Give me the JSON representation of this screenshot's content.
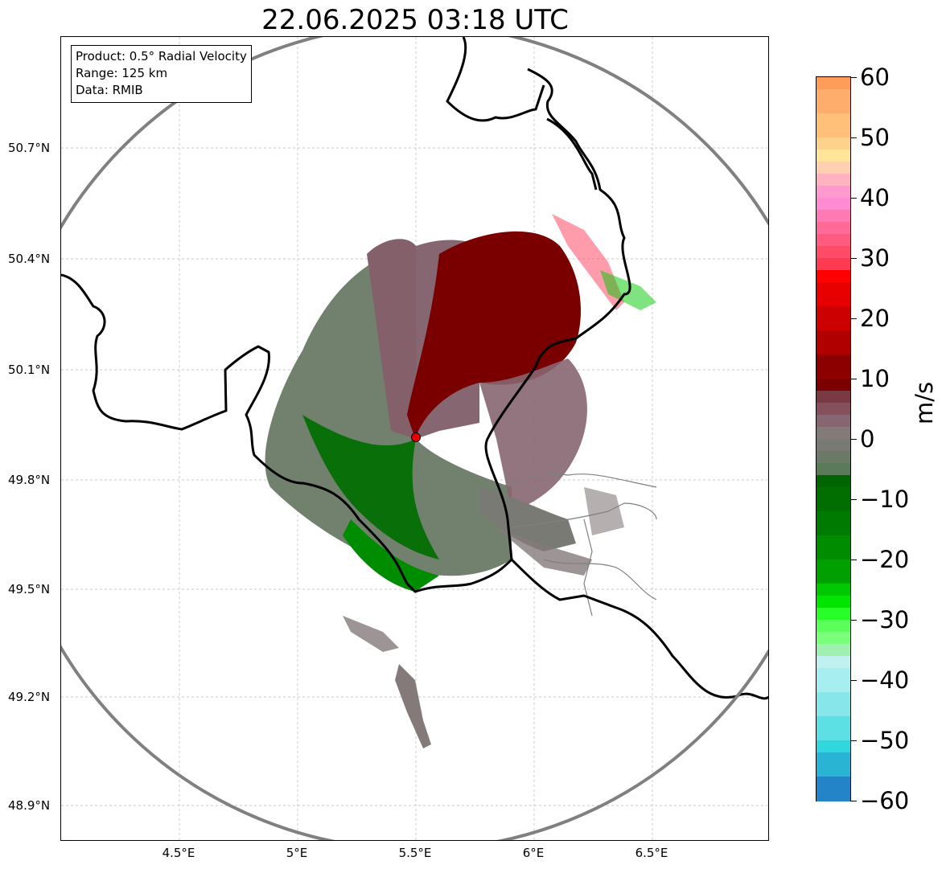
{
  "title": "22.06.2025 03:18 UTC",
  "info": {
    "product": "Product: 0.5° Radial Velocity",
    "range": "Range: 125 km",
    "data": "Data: RMIB"
  },
  "map": {
    "lat_labels": [
      "50.7°N",
      "50.4°N",
      "50.1°N",
      "49.8°N",
      "49.5°N",
      "49.2°N",
      "48.9°N"
    ],
    "lon_labels": [
      "4.5°E",
      "5°E",
      "5.5°E",
      "6°E",
      "6.5°E"
    ],
    "radar_site": {
      "lon": 5.5,
      "lat": 49.91
    },
    "range_ring_color": "#808080",
    "border_color": "#000000"
  },
  "colorbar": {
    "unit": "m/s",
    "min": -60,
    "max": 60,
    "tick_labels": [
      "60",
      "50",
      "40",
      "30",
      "20",
      "10",
      "0",
      "−10",
      "−20",
      "−30",
      "−40",
      "−50",
      "−60"
    ],
    "tick_values": [
      60,
      50,
      40,
      30,
      20,
      10,
      0,
      -10,
      -20,
      -30,
      -40,
      -50,
      -60
    ],
    "colors": [
      {
        "from": 58,
        "to": 60,
        "color": "#ff9c5a"
      },
      {
        "from": 54,
        "to": 58,
        "color": "#ffad6c"
      },
      {
        "from": 50,
        "to": 54,
        "color": "#ffc07a"
      },
      {
        "from": 48,
        "to": 50,
        "color": "#ffd28c"
      },
      {
        "from": 46,
        "to": 48,
        "color": "#ffe49a"
      },
      {
        "from": 44,
        "to": 46,
        "color": "#ffcfb0"
      },
      {
        "from": 42,
        "to": 44,
        "color": "#ffb3c0"
      },
      {
        "from": 40,
        "to": 42,
        "color": "#ff9ad0"
      },
      {
        "from": 38,
        "to": 40,
        "color": "#ff8cd2"
      },
      {
        "from": 36,
        "to": 38,
        "color": "#ff7ab4"
      },
      {
        "from": 34,
        "to": 36,
        "color": "#ff6a98"
      },
      {
        "from": 32,
        "to": 34,
        "color": "#ff5a80"
      },
      {
        "from": 30,
        "to": 32,
        "color": "#ff4a68"
      },
      {
        "from": 28,
        "to": 30,
        "color": "#ff3a50"
      },
      {
        "from": 26,
        "to": 28,
        "color": "#ff0000"
      },
      {
        "from": 22,
        "to": 26,
        "color": "#e80000"
      },
      {
        "from": 18,
        "to": 22,
        "color": "#cc0000"
      },
      {
        "from": 14,
        "to": 18,
        "color": "#b00000"
      },
      {
        "from": 10,
        "to": 14,
        "color": "#8c0000"
      },
      {
        "from": 8,
        "to": 10,
        "color": "#7a0000"
      },
      {
        "from": 6,
        "to": 8,
        "color": "#7a3a44"
      },
      {
        "from": 4,
        "to": 6,
        "color": "#84505c"
      },
      {
        "from": 2,
        "to": 4,
        "color": "#866670"
      },
      {
        "from": 0,
        "to": 2,
        "color": "#847a7a"
      },
      {
        "from": -2,
        "to": 0,
        "color": "#7a7a74"
      },
      {
        "from": -4,
        "to": -2,
        "color": "#6a7a66"
      },
      {
        "from": -6,
        "to": -4,
        "color": "#5a7a5a"
      },
      {
        "from": -8,
        "to": -6,
        "color": "#006400"
      },
      {
        "from": -12,
        "to": -8,
        "color": "#006e00"
      },
      {
        "from": -16,
        "to": -12,
        "color": "#007a00"
      },
      {
        "from": -20,
        "to": -16,
        "color": "#008c00"
      },
      {
        "from": -24,
        "to": -20,
        "color": "#00a000"
      },
      {
        "from": -26,
        "to": -24,
        "color": "#00c800"
      },
      {
        "from": -28,
        "to": -26,
        "color": "#00e600"
      },
      {
        "from": -30,
        "to": -28,
        "color": "#28ff28"
      },
      {
        "from": -32,
        "to": -30,
        "color": "#5aff5a"
      },
      {
        "from": -34,
        "to": -32,
        "color": "#7aff7a"
      },
      {
        "from": -36,
        "to": -34,
        "color": "#a0f0b0"
      },
      {
        "from": -38,
        "to": -36,
        "color": "#c0f0f0"
      },
      {
        "from": -42,
        "to": -38,
        "color": "#a6eef0"
      },
      {
        "from": -46,
        "to": -42,
        "color": "#86e6ea"
      },
      {
        "from": -50,
        "to": -46,
        "color": "#5ce0e4"
      },
      {
        "from": -52,
        "to": -50,
        "color": "#30d8de"
      },
      {
        "from": -56,
        "to": -52,
        "color": "#28b4d2"
      },
      {
        "from": -60,
        "to": -56,
        "color": "#2484c8"
      }
    ]
  }
}
